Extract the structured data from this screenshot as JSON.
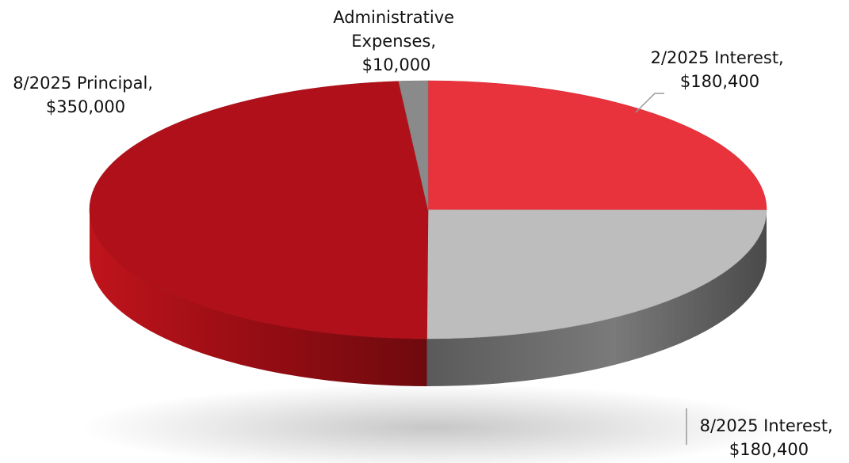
{
  "chart_data": {
    "type": "pie",
    "style": "3d",
    "title": "",
    "legend": "none",
    "slices": [
      {
        "name": "2/2025 Interest",
        "value": 180400,
        "value_label": "$180,400",
        "color": "#e8323c"
      },
      {
        "name": "8/2025 Interest",
        "value": 180400,
        "value_label": "$180,400",
        "color": "#bdbdbd"
      },
      {
        "name": "8/2025 Principal",
        "value": 350000,
        "value_label": "$350,000",
        "color": "#b01019"
      },
      {
        "name": "Administrative Expenses",
        "value": 10000,
        "value_label": "$10,000",
        "color": "#8a8a8a"
      }
    ]
  },
  "labels": {
    "interest_feb": {
      "line1": "2/2025 Interest,",
      "line2": "$180,400"
    },
    "interest_aug": {
      "line1": "8/2025 Interest,",
      "line2": "$180,400"
    },
    "principal": {
      "line1": "8/2025 Principal,",
      "line2": "$350,000"
    },
    "admin": {
      "line1": "Administrative",
      "line2": "Expenses,",
      "line3": "$10,000"
    }
  }
}
